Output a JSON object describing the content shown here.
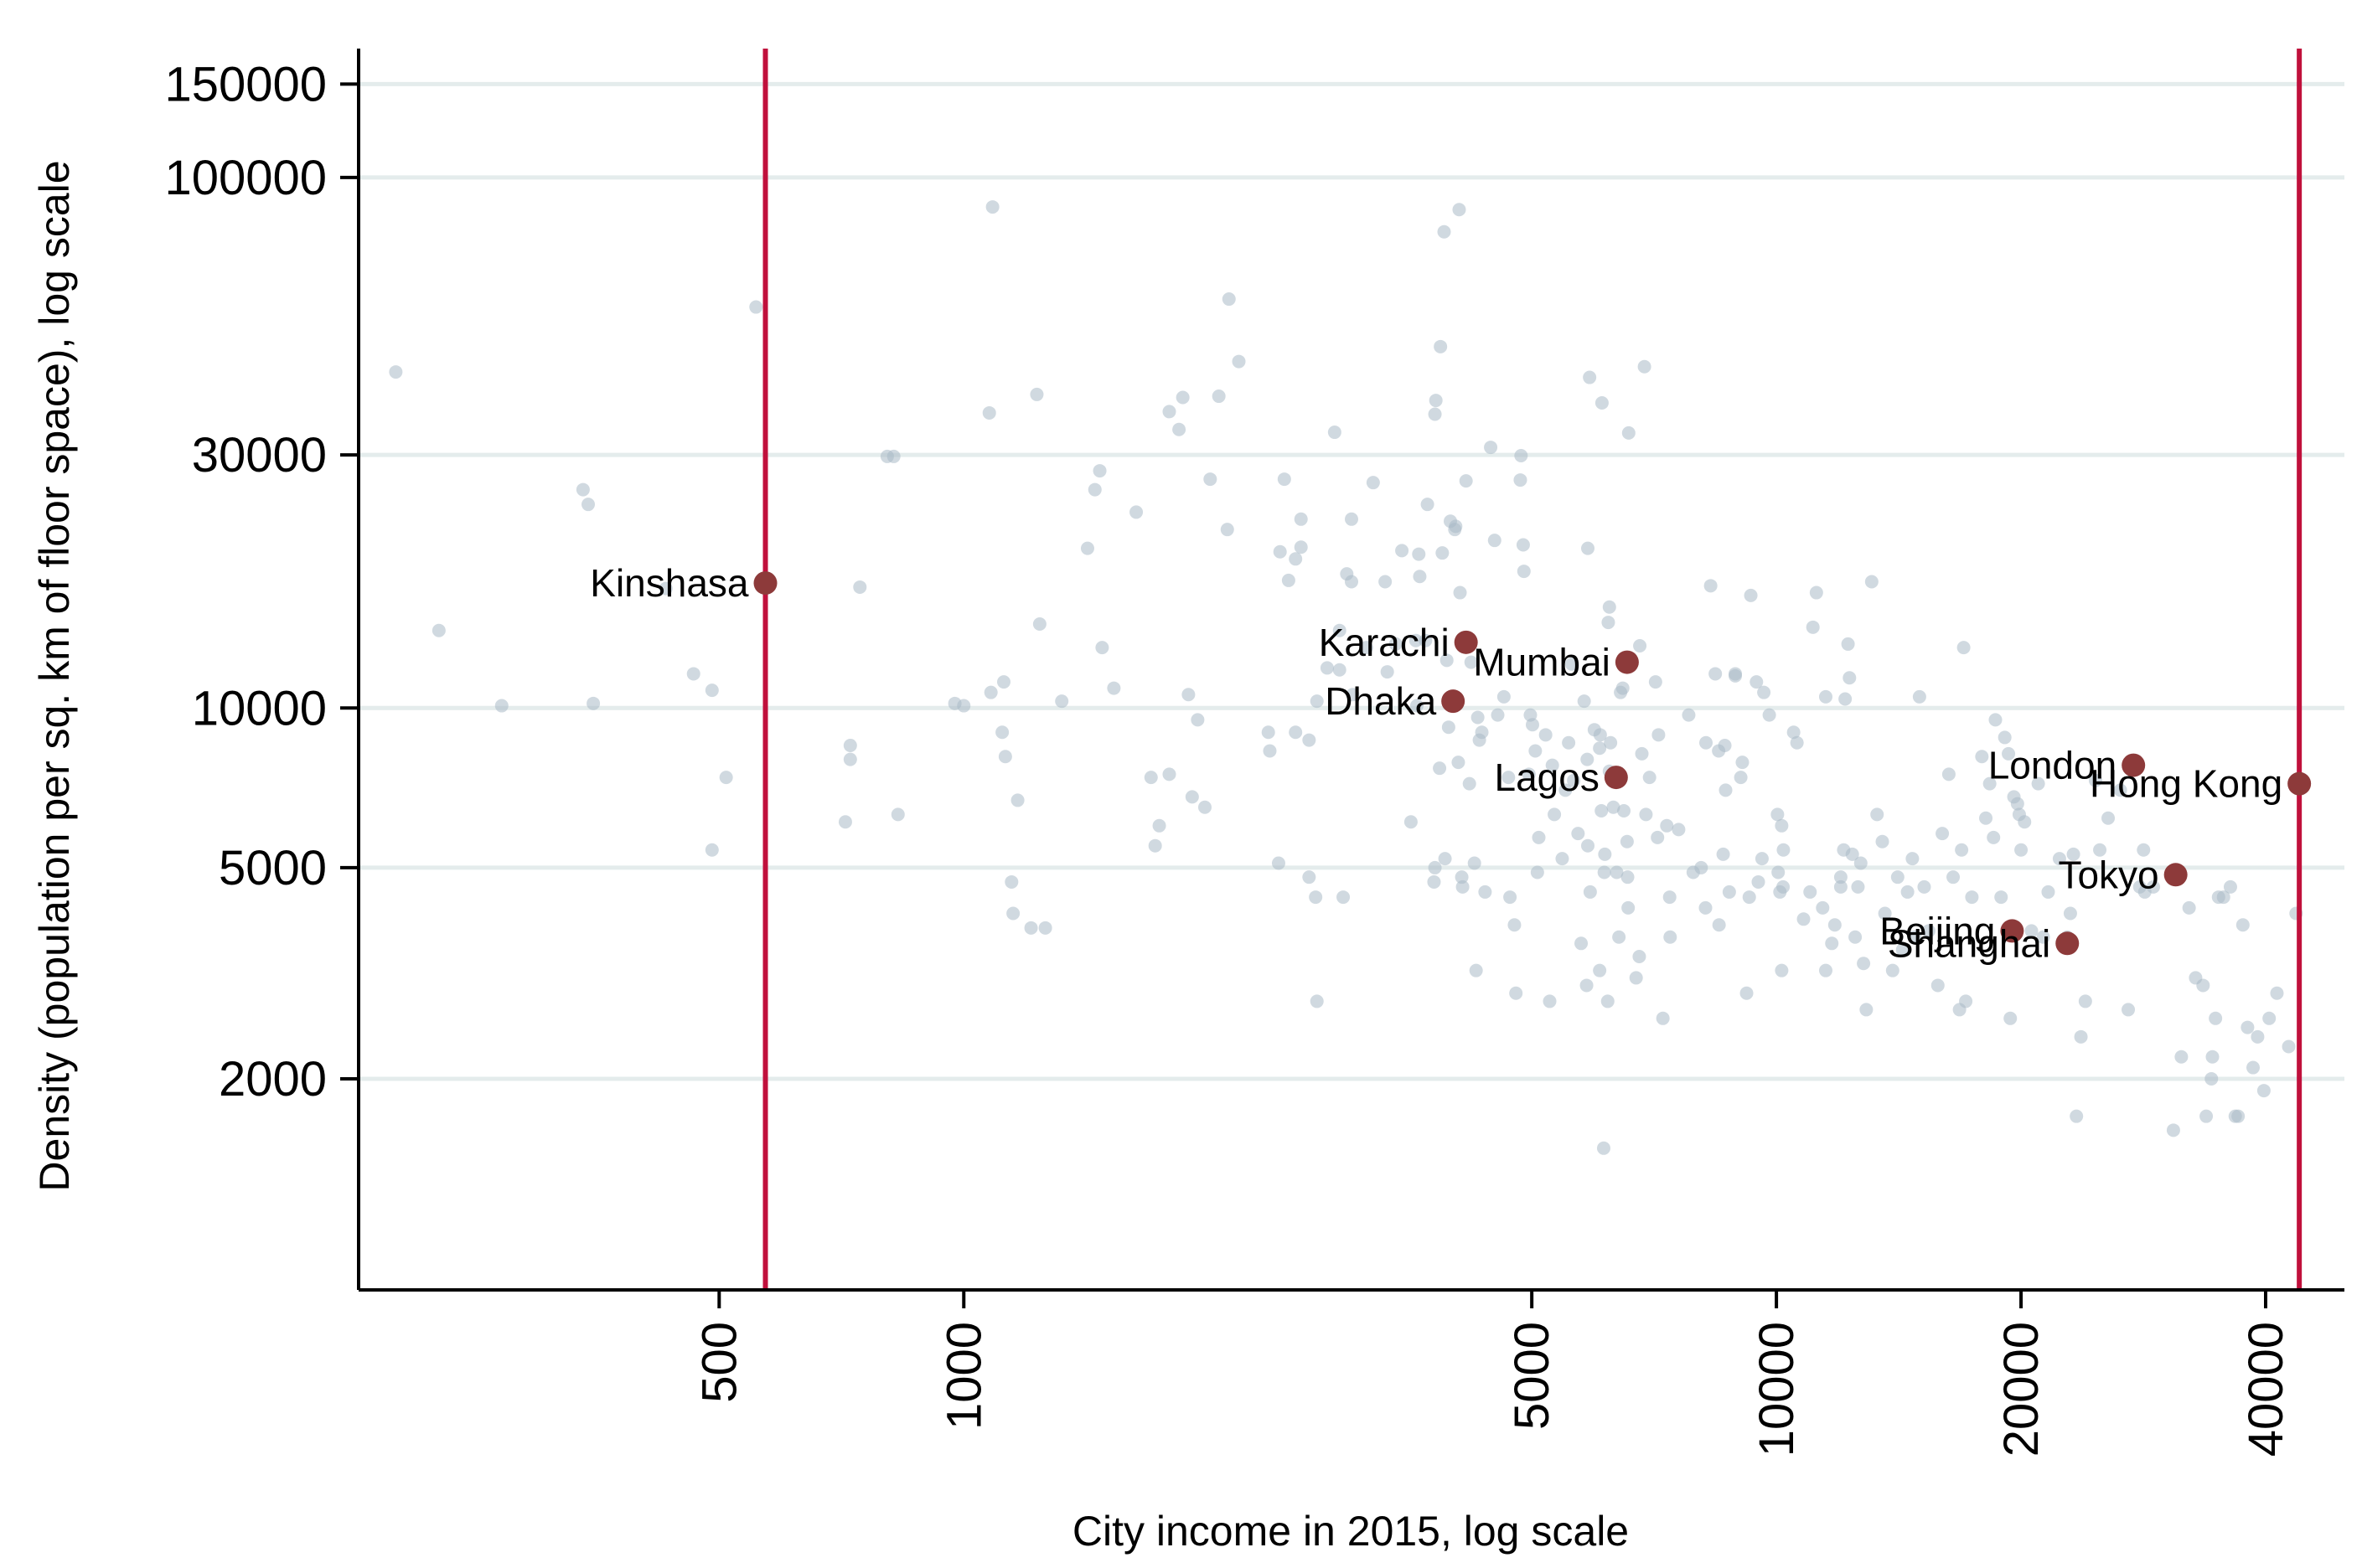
{
  "chart_data": {
    "type": "scatter",
    "xlabel": "City income in 2015, log scale",
    "ylabel": "Density (population per sq. km of floor space), log scale",
    "x_scale": "log",
    "y_scale": "log",
    "xlim": [
      180,
      50000
    ],
    "ylim": [
      800,
      175000
    ],
    "x_ticks": [
      500,
      1000,
      5000,
      10000,
      20000,
      40000
    ],
    "x_tick_labels": [
      "500",
      "1000",
      "5000",
      "10000",
      "20000",
      "40000"
    ],
    "y_ticks": [
      2000,
      5000,
      10000,
      30000,
      100000,
      150000
    ],
    "y_tick_labels": [
      "2000",
      "5000",
      "10000",
      "30000",
      "100000",
      "150000"
    ],
    "grid": "horizontal",
    "reference_lines_x": [
      570,
      44000
    ],
    "colors": {
      "highlight": "#8d3a3a",
      "background_points": "#aab9c6",
      "reference_line": "#c0103c",
      "grid": "#e4ecec"
    },
    "highlighted": [
      {
        "name": "Kinshasa",
        "x": 570,
        "y": 17200,
        "label_side": "left"
      },
      {
        "name": "Karachi",
        "x": 4150,
        "y": 13300,
        "label_side": "left"
      },
      {
        "name": "Mumbai",
        "x": 6550,
        "y": 12200,
        "label_side": "left"
      },
      {
        "name": "Dhaka",
        "x": 4000,
        "y": 10300,
        "label_side": "left"
      },
      {
        "name": "Lagos",
        "x": 6350,
        "y": 7400,
        "label_side": "left"
      },
      {
        "name": "London",
        "x": 27500,
        "y": 7800,
        "label_side": "left"
      },
      {
        "name": "Hong Kong",
        "x": 44000,
        "y": 7200,
        "label_side": "left"
      },
      {
        "name": "Tokyo",
        "x": 31000,
        "y": 4850,
        "label_side": "left"
      },
      {
        "name": "Beijing",
        "x": 19500,
        "y": 3800,
        "label_side": "left"
      },
      {
        "name": "Shanghai",
        "x": 22800,
        "y": 3600,
        "label_side": "left"
      }
    ],
    "background_points": [
      [
        200,
        43000
      ],
      [
        226,
        14000
      ],
      [
        270,
        10100
      ],
      [
        340,
        25800
      ],
      [
        345,
        24200
      ],
      [
        350,
        10200
      ],
      [
        430,
        16800
      ],
      [
        465,
        11600
      ],
      [
        490,
        10800
      ],
      [
        490,
        5400
      ],
      [
        510,
        7400
      ],
      [
        555,
        57000
      ],
      [
        715,
        6100
      ],
      [
        725,
        8500
      ],
      [
        725,
        8000
      ],
      [
        745,
        16900
      ],
      [
        805,
        29800
      ],
      [
        820,
        29800
      ],
      [
        830,
        6300
      ],
      [
        975,
        10200
      ],
      [
        1000,
        10100
      ],
      [
        1085,
        88000
      ],
      [
        1075,
        36000
      ],
      [
        1080,
        10700
      ],
      [
        1120,
        11200
      ],
      [
        1115,
        9000
      ],
      [
        1125,
        8100
      ],
      [
        1165,
        6700
      ],
      [
        1145,
        4700
      ],
      [
        1150,
        4100
      ],
      [
        1210,
        3850
      ],
      [
        1230,
        39000
      ],
      [
        1260,
        3850
      ],
      [
        1240,
        14400
      ],
      [
        1320,
        10300
      ],
      [
        1420,
        20000
      ],
      [
        1450,
        25800
      ],
      [
        1470,
        28000
      ],
      [
        1480,
        13000
      ],
      [
        1530,
        10900
      ],
      [
        1630,
        23400
      ],
      [
        1700,
        7400
      ],
      [
        1720,
        5500
      ],
      [
        1740,
        6000
      ],
      [
        1790,
        7500
      ],
      [
        1790,
        36200
      ],
      [
        1840,
        33500
      ],
      [
        1860,
        38500
      ],
      [
        1940,
        9500
      ],
      [
        1890,
        10600
      ],
      [
        1910,
        6800
      ],
      [
        2010,
        27000
      ],
      [
        1980,
        6500
      ],
      [
        2060,
        38700
      ],
      [
        2110,
        21700
      ],
      [
        2180,
        45000
      ],
      [
        2120,
        59000
      ],
      [
        2370,
        9000
      ],
      [
        2380,
        8300
      ],
      [
        2440,
        5100
      ],
      [
        2450,
        19700
      ],
      [
        2510,
        17400
      ],
      [
        2480,
        27000
      ],
      [
        2560,
        19100
      ],
      [
        2600,
        20100
      ],
      [
        2600,
        22700
      ],
      [
        2560,
        9000
      ],
      [
        2660,
        8700
      ],
      [
        2710,
        4400
      ],
      [
        2660,
        4800
      ],
      [
        2720,
        2800
      ],
      [
        2720,
        10300
      ],
      [
        2800,
        11900
      ],
      [
        2860,
        33100
      ],
      [
        2900,
        11800
      ],
      [
        2900,
        14000
      ],
      [
        2930,
        4400
      ],
      [
        2960,
        17900
      ],
      [
        3000,
        17300
      ],
      [
        3000,
        22700
      ],
      [
        3010,
        10600
      ],
      [
        3130,
        13000
      ],
      [
        3190,
        26600
      ],
      [
        3300,
        17300
      ],
      [
        3320,
        11700
      ],
      [
        3400,
        13200
      ],
      [
        3460,
        19800
      ],
      [
        3600,
        13400
      ],
      [
        3550,
        6100
      ],
      [
        3610,
        10100
      ],
      [
        3630,
        19500
      ],
      [
        3640,
        17700
      ],
      [
        3700,
        13400
      ],
      [
        3720,
        24200
      ],
      [
        3800,
        35800
      ],
      [
        3810,
        38000
      ],
      [
        3800,
        5000
      ],
      [
        3790,
        4700
      ],
      [
        3850,
        7700
      ],
      [
        3880,
        19600
      ],
      [
        3860,
        48000
      ],
      [
        3900,
        79000
      ],
      [
        3930,
        12300
      ],
      [
        3910,
        5200
      ],
      [
        3950,
        9200
      ],
      [
        3970,
        22500
      ],
      [
        4020,
        21700
      ],
      [
        4030,
        22000
      ],
      [
        4060,
        7900
      ],
      [
        4070,
        87000
      ],
      [
        4080,
        16500
      ],
      [
        4100,
        4800
      ],
      [
        4110,
        4600
      ],
      [
        4150,
        26800
      ],
      [
        4190,
        7200
      ],
      [
        4210,
        12200
      ],
      [
        4250,
        5100
      ],
      [
        4270,
        3200
      ],
      [
        4290,
        9600
      ],
      [
        4310,
        8700
      ],
      [
        4340,
        9000
      ],
      [
        4380,
        4500
      ],
      [
        4450,
        31000
      ],
      [
        4500,
        20700
      ],
      [
        4540,
        9700
      ],
      [
        4620,
        10500
      ],
      [
        4680,
        7400
      ],
      [
        4700,
        4400
      ],
      [
        4760,
        3900
      ],
      [
        4780,
        2900
      ],
      [
        4840,
        26900
      ],
      [
        4850,
        29900
      ],
      [
        4880,
        20300
      ],
      [
        4890,
        18100
      ],
      [
        4960,
        7500
      ],
      [
        4980,
        9700
      ],
      [
        5010,
        9300
      ],
      [
        5050,
        8300
      ],
      [
        5100,
        5700
      ],
      [
        5080,
        4900
      ],
      [
        5200,
        8900
      ],
      [
        5260,
        2800
      ],
      [
        5300,
        7800
      ],
      [
        5330,
        6300
      ],
      [
        5450,
        5200
      ],
      [
        5500,
        7000
      ],
      [
        5550,
        8600
      ],
      [
        5600,
        12100
      ],
      [
        5630,
        7300
      ],
      [
        5700,
        5800
      ],
      [
        5750,
        3600
      ],
      [
        5800,
        10300
      ],
      [
        5840,
        3000
      ],
      [
        5850,
        8000
      ],
      [
        5860,
        5500
      ],
      [
        5860,
        20000
      ],
      [
        5890,
        42000
      ],
      [
        5900,
        4500
      ],
      [
        5970,
        9100
      ],
      [
        6060,
        8400
      ],
      [
        6070,
        8900
      ],
      [
        6060,
        3200
      ],
      [
        6090,
        6400
      ],
      [
        6100,
        37600
      ],
      [
        6130,
        1480
      ],
      [
        6140,
        4900
      ],
      [
        6150,
        5300
      ],
      [
        6200,
        2800
      ],
      [
        6230,
        7600
      ],
      [
        6210,
        14500
      ],
      [
        6230,
        15500
      ],
      [
        6250,
        8600
      ],
      [
        6300,
        6500
      ],
      [
        6360,
        4900
      ],
      [
        6400,
        3700
      ],
      [
        6430,
        10700
      ],
      [
        6470,
        10900
      ],
      [
        6490,
        6400
      ],
      [
        6550,
        5600
      ],
      [
        6560,
        4800
      ],
      [
        6570,
        4200
      ],
      [
        6580,
        33000
      ],
      [
        6720,
        3100
      ],
      [
        6780,
        3400
      ],
      [
        6790,
        13100
      ],
      [
        6830,
        8200
      ],
      [
        6880,
        44000
      ],
      [
        6910,
        6300
      ],
      [
        6980,
        7400
      ],
      [
        7100,
        11200
      ],
      [
        7140,
        5700
      ],
      [
        7160,
        8900
      ],
      [
        7250,
        2600
      ],
      [
        7330,
        6000
      ],
      [
        7390,
        4400
      ],
      [
        7400,
        3700
      ],
      [
        7580,
        5900
      ],
      [
        7800,
        9700
      ],
      [
        7900,
        4900
      ],
      [
        8080,
        5000
      ],
      [
        8190,
        8600
      ],
      [
        8180,
        4200
      ],
      [
        8300,
        17000
      ],
      [
        8410,
        11600
      ],
      [
        8500,
        3900
      ],
      [
        8490,
        8300
      ],
      [
        8640,
        8500
      ],
      [
        8660,
        7000
      ],
      [
        8600,
        5300
      ],
      [
        8750,
        4500
      ],
      [
        8900,
        11500
      ],
      [
        8900,
        11600
      ],
      [
        9040,
        7400
      ],
      [
        9080,
        7900
      ],
      [
        9190,
        2900
      ],
      [
        9260,
        4400
      ],
      [
        9300,
        16300
      ],
      [
        9450,
        11200
      ],
      [
        9600,
        5200
      ],
      [
        9500,
        4700
      ],
      [
        9650,
        10700
      ],
      [
        9800,
        9700
      ],
      [
        10030,
        6300
      ],
      [
        10150,
        6000
      ],
      [
        10050,
        4900
      ],
      [
        10100,
        4500
      ],
      [
        10190,
        4600
      ],
      [
        10200,
        5400
      ],
      [
        10150,
        3200
      ],
      [
        10500,
        9000
      ],
      [
        10600,
        8600
      ],
      [
        10800,
        4000
      ],
      [
        11000,
        4500
      ],
      [
        11090,
        14200
      ],
      [
        11200,
        16500
      ],
      [
        11400,
        4200
      ],
      [
        11500,
        10500
      ],
      [
        11500,
        3200
      ],
      [
        11700,
        3600
      ],
      [
        11800,
        3900
      ],
      [
        12000,
        4800
      ],
      [
        12000,
        4600
      ],
      [
        12100,
        5400
      ],
      [
        12150,
        10400
      ],
      [
        12250,
        13200
      ],
      [
        12300,
        11400
      ],
      [
        12400,
        5300
      ],
      [
        12500,
        3700
      ],
      [
        12600,
        4600
      ],
      [
        12700,
        5100
      ],
      [
        12800,
        3300
      ],
      [
        12900,
        2700
      ],
      [
        13100,
        17300
      ],
      [
        13300,
        6300
      ],
      [
        13500,
        5600
      ],
      [
        13600,
        4100
      ],
      [
        13900,
        3200
      ],
      [
        14100,
        4800
      ],
      [
        14300,
        3500
      ],
      [
        14500,
        4500
      ],
      [
        14700,
        5200
      ],
      [
        14800,
        3700
      ],
      [
        15000,
        10500
      ],
      [
        15200,
        4600
      ],
      [
        15400,
        3800
      ],
      [
        15800,
        3000
      ],
      [
        16000,
        5800
      ],
      [
        16300,
        7500
      ],
      [
        16500,
        4800
      ],
      [
        16800,
        2700
      ],
      [
        16900,
        5400
      ],
      [
        17000,
        13000
      ],
      [
        17100,
        2800
      ],
      [
        17400,
        4400
      ],
      [
        17900,
        8100
      ],
      [
        18100,
        6200
      ],
      [
        18300,
        7200
      ],
      [
        18500,
        5700
      ],
      [
        18600,
        9500
      ],
      [
        18900,
        4400
      ],
      [
        19100,
        8800
      ],
      [
        19300,
        8200
      ],
      [
        19400,
        2600
      ],
      [
        19600,
        6800
      ],
      [
        19800,
        6600
      ],
      [
        19900,
        6300
      ],
      [
        20000,
        5400
      ],
      [
        20200,
        6100
      ],
      [
        20600,
        3800
      ],
      [
        21000,
        7200
      ],
      [
        21300,
        3700
      ],
      [
        21600,
        4500
      ],
      [
        22300,
        5200
      ],
      [
        22800,
        3700
      ],
      [
        23000,
        4100
      ],
      [
        23200,
        5300
      ],
      [
        23400,
        1700
      ],
      [
        23700,
        2400
      ],
      [
        24000,
        2800
      ],
      [
        24700,
        7300
      ],
      [
        25000,
        5400
      ],
      [
        25600,
        6200
      ],
      [
        26500,
        7000
      ],
      [
        27100,
        2700
      ],
      [
        28000,
        4600
      ],
      [
        28300,
        5400
      ],
      [
        28400,
        4500
      ],
      [
        29100,
        4600
      ],
      [
        30800,
        1600
      ],
      [
        31500,
        2200
      ],
      [
        32200,
        4200
      ],
      [
        32800,
        3100
      ],
      [
        33500,
        3000
      ],
      [
        33800,
        1700
      ],
      [
        34300,
        2000
      ],
      [
        34400,
        2200
      ],
      [
        34700,
        2600
      ],
      [
        35000,
        4400
      ],
      [
        35500,
        4400
      ],
      [
        36200,
        4600
      ],
      [
        36700,
        1700
      ],
      [
        37000,
        1700
      ],
      [
        37500,
        3900
      ],
      [
        38000,
        2500
      ],
      [
        38600,
        2100
      ],
      [
        39100,
        2400
      ],
      [
        39800,
        1900
      ],
      [
        40400,
        2600
      ],
      [
        41300,
        2900
      ],
      [
        42700,
        2300
      ],
      [
        43600,
        4100
      ]
    ]
  }
}
